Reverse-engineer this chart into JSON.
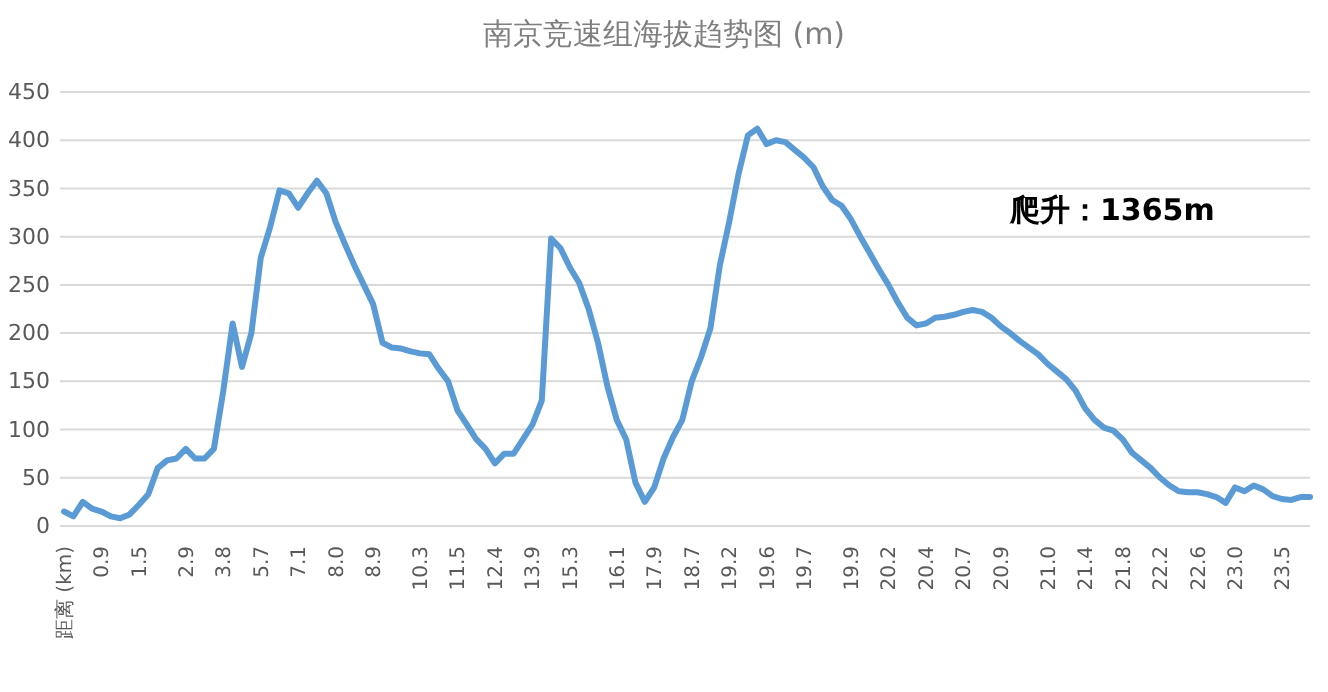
{
  "chart_data": {
    "type": "line",
    "title": "南京竞速组海拔趋势图 (m)",
    "categories": [
      "距离 (km)",
      null,
      null,
      null,
      "0.9",
      null,
      null,
      null,
      "1.5",
      null,
      null,
      null,
      null,
      "2.9",
      null,
      null,
      null,
      "3.8",
      null,
      null,
      null,
      "5.7",
      null,
      null,
      null,
      "7.1",
      null,
      null,
      null,
      "8.0",
      null,
      null,
      null,
      "8.9",
      null,
      null,
      null,
      null,
      "10.3",
      null,
      null,
      null,
      "11.5",
      null,
      null,
      null,
      "12.4",
      null,
      null,
      null,
      "13.9",
      null,
      null,
      null,
      "15.3",
      null,
      null,
      null,
      null,
      "16.1",
      null,
      null,
      null,
      "17.9",
      null,
      null,
      null,
      "18.7",
      null,
      null,
      null,
      "19.2",
      null,
      null,
      null,
      "19.6",
      null,
      null,
      null,
      "19.7",
      null,
      null,
      null,
      null,
      "19.9",
      null,
      null,
      null,
      "20.2",
      null,
      null,
      null,
      "20.4",
      null,
      null,
      null,
      "20.7",
      null,
      null,
      null,
      "20.9",
      null,
      null,
      null,
      null,
      "21.0",
      null,
      null,
      null,
      "21.4",
      null,
      null,
      null,
      "21.8",
      null,
      null,
      null,
      "22.2",
      null,
      null,
      null,
      "22.6",
      null,
      null,
      null,
      "23.0",
      null,
      null,
      null,
      null,
      "23.5",
      null,
      null,
      null
    ],
    "series": [
      {
        "color": "#5b9bd5",
        "values": [
          15,
          10,
          25,
          18,
          15,
          10,
          8,
          12,
          22,
          33,
          60,
          68,
          70,
          80,
          70,
          70,
          80,
          140,
          210,
          165,
          200,
          278,
          310,
          348,
          345,
          330,
          345,
          358,
          345,
          315,
          292,
          270,
          250,
          230,
          190,
          185,
          184,
          181,
          179,
          178,
          163,
          150,
          120,
          105,
          90,
          80,
          65,
          75,
          75,
          90,
          105,
          130,
          298,
          288,
          268,
          252,
          225,
          190,
          145,
          110,
          90,
          45,
          25,
          40,
          70,
          92,
          110,
          150,
          175,
          205,
          270,
          315,
          365,
          405,
          412,
          396,
          400,
          398,
          390,
          382,
          372,
          352,
          338,
          332,
          318,
          300,
          283,
          266,
          250,
          232,
          216,
          208,
          210,
          216,
          217,
          219,
          222,
          224,
          222,
          216,
          207,
          200,
          192,
          185,
          178,
          168,
          160,
          152,
          140,
          122,
          110,
          102,
          99,
          90,
          76,
          68,
          60,
          50,
          42,
          36,
          35,
          35,
          33,
          30,
          24,
          40,
          36,
          42,
          38,
          31,
          28,
          27,
          30,
          30
        ]
      }
    ],
    "ylim": [
      0,
      450
    ],
    "yticks": [
      0,
      50,
      100,
      150,
      200,
      250,
      300,
      350,
      400,
      450
    ],
    "grid": "y",
    "annotations": [
      "爬升：1365m"
    ]
  }
}
